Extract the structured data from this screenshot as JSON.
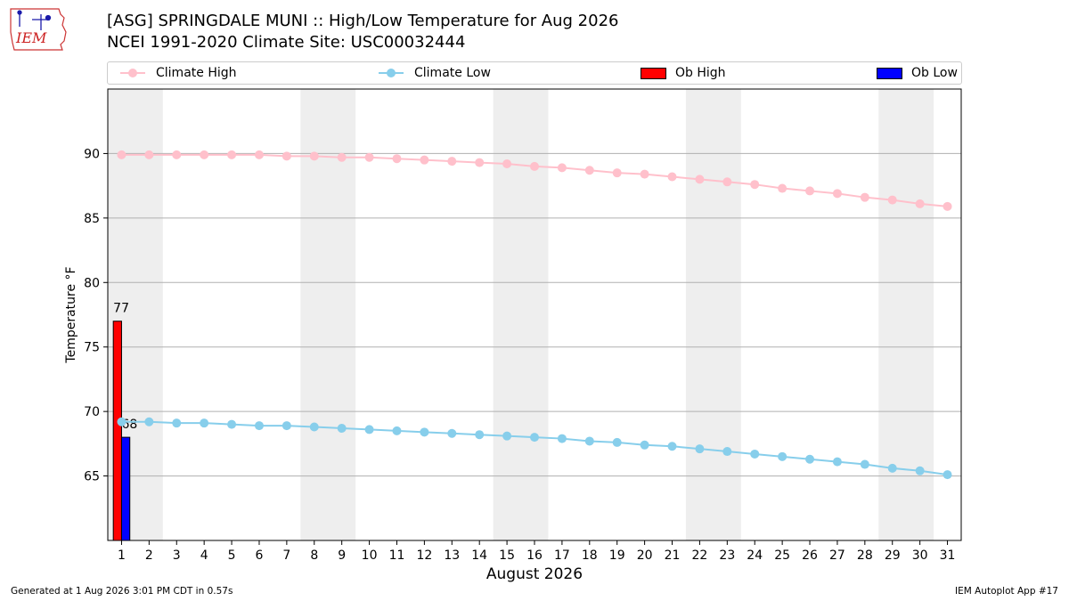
{
  "header": {
    "title_line1": "[ASG] SPRINGDALE MUNI :: High/Low Temperature for Aug 2026",
    "title_line2": "NCEI 1991-2020 Climate Site: USC00032444"
  },
  "logo": {
    "text": "IEM"
  },
  "legend": {
    "climate_high": "Climate High",
    "climate_low": "Climate Low",
    "ob_high": "Ob High",
    "ob_low": "Ob Low"
  },
  "footer": {
    "left": "Generated at 1 Aug 2026 3:01 PM CDT in 0.57s",
    "right": "IEM Autoplot App #17"
  },
  "colors": {
    "climate_high": "#ffc0cb",
    "climate_low": "#87ceeb",
    "ob_high": "#ff0000",
    "ob_low": "#0000ff",
    "weekend_band": "#eeeeee",
    "grid": "#b0b0b0"
  },
  "chart_data": {
    "type": "bar",
    "xlabel": "August 2026",
    "ylabel": "Temperature °F",
    "xlim": [
      0.5,
      31.5
    ],
    "ylim": [
      60,
      95
    ],
    "yticks": [
      65,
      70,
      75,
      80,
      85,
      90
    ],
    "grid": "horizontal",
    "legend_position": "top",
    "shaded_day_ranges": [
      [
        0.5,
        2.5
      ],
      [
        7.5,
        9.5
      ],
      [
        14.5,
        16.5
      ],
      [
        21.5,
        23.5
      ],
      [
        28.5,
        30.5
      ]
    ],
    "x": [
      1,
      2,
      3,
      4,
      5,
      6,
      7,
      8,
      9,
      10,
      11,
      12,
      13,
      14,
      15,
      16,
      17,
      18,
      19,
      20,
      21,
      22,
      23,
      24,
      25,
      26,
      27,
      28,
      29,
      30,
      31
    ],
    "series": [
      {
        "name": "Climate High",
        "type": "line",
        "values": [
          89.9,
          89.9,
          89.9,
          89.9,
          89.9,
          89.9,
          89.8,
          89.8,
          89.7,
          89.7,
          89.6,
          89.5,
          89.4,
          89.3,
          89.2,
          89.0,
          88.9,
          88.7,
          88.5,
          88.4,
          88.2,
          88.0,
          87.8,
          87.6,
          87.3,
          87.1,
          86.9,
          86.6,
          86.4,
          86.1,
          85.9
        ]
      },
      {
        "name": "Climate Low",
        "type": "line",
        "values": [
          69.2,
          69.2,
          69.1,
          69.1,
          69.0,
          68.9,
          68.9,
          68.8,
          68.7,
          68.6,
          68.5,
          68.4,
          68.3,
          68.2,
          68.1,
          68.0,
          67.9,
          67.7,
          67.6,
          67.4,
          67.3,
          67.1,
          66.9,
          66.7,
          66.5,
          66.3,
          66.1,
          65.9,
          65.6,
          65.4,
          65.1
        ]
      },
      {
        "name": "Ob High",
        "type": "bar",
        "x": [
          1
        ],
        "values": [
          77
        ],
        "labels": [
          "77"
        ]
      },
      {
        "name": "Ob Low",
        "type": "bar",
        "x": [
          1
        ],
        "values": [
          68
        ],
        "labels": [
          "68"
        ]
      }
    ]
  }
}
